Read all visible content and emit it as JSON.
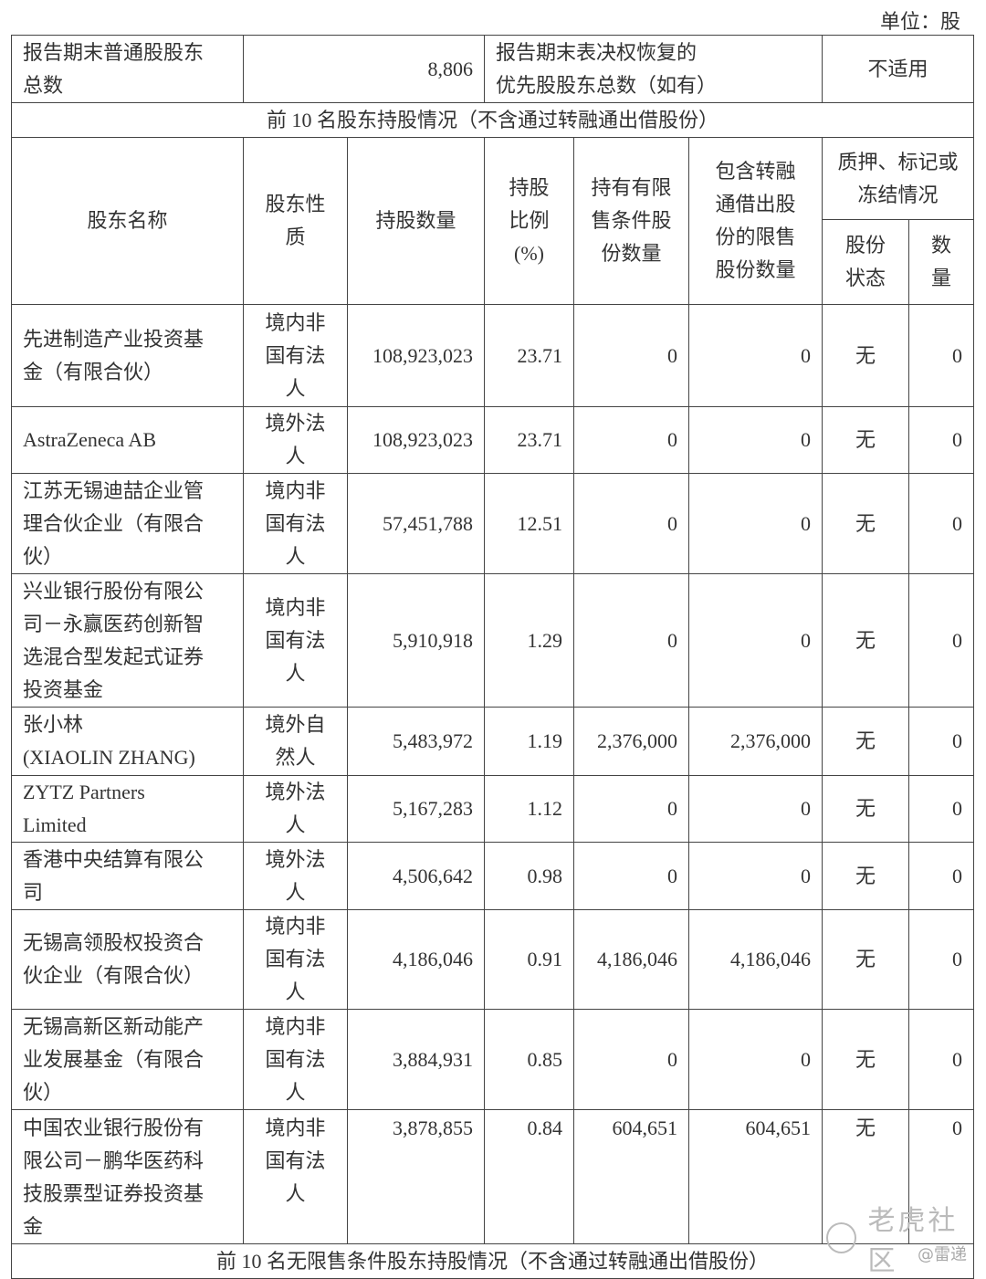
{
  "unit_label": "单位：股",
  "summary": {
    "common_holders_label": "报告期末普通股股东\n总数",
    "common_holders_value": "8,806",
    "preferred_holders_label": "报告期末表决权恢复的\n优先股股东总数（如有）",
    "preferred_holders_value": "不适用"
  },
  "section_title": "前 10 名股东持股情况（不含通过转融通出借股份）",
  "headers": {
    "name": "股东名称",
    "nature": "股东性\n质",
    "shares": "持股数量",
    "ratio": "持股\n比例\n(%)",
    "restricted": "持有有限\n售条件股\n份数量",
    "lent_restricted": "包含转融\n通借出股\n份的限售\n股份数量",
    "pledge": "质押、标记或\n冻结情况",
    "pledge_status": "股份\n状态",
    "pledge_qty": "数\n量"
  },
  "rows": [
    {
      "name": "先进制造产业投资基\n金（有限合伙）",
      "nature": "境内非\n国有法\n人",
      "shares": "108,923,023",
      "ratio": "23.71",
      "restricted": "0",
      "lent": "0",
      "status": "无",
      "qty": "0"
    },
    {
      "name": "AstraZeneca AB",
      "nature": "境外法\n人",
      "shares": "108,923,023",
      "ratio": "23.71",
      "restricted": "0",
      "lent": "0",
      "status": "无",
      "qty": "0"
    },
    {
      "name": "江苏无锡迪喆企业管\n理合伙企业（有限合\n伙）",
      "nature": "境内非\n国有法\n人",
      "shares": "57,451,788",
      "ratio": "12.51",
      "restricted": "0",
      "lent": "0",
      "status": "无",
      "qty": "0"
    },
    {
      "name": "兴业银行股份有限公\n司－永赢医药创新智\n选混合型发起式证券\n投资基金",
      "nature": "境内非\n国有法\n人",
      "shares": "5,910,918",
      "ratio": "1.29",
      "restricted": "0",
      "lent": "0",
      "status": "无",
      "qty": "0"
    },
    {
      "name": "张小林\n(XIAOLIN ZHANG)",
      "nature": "境外自\n然人",
      "shares": "5,483,972",
      "ratio": "1.19",
      "restricted": "2,376,000",
      "lent": "2,376,000",
      "status": "无",
      "qty": "0"
    },
    {
      "name": "ZYTZ Partners\nLimited",
      "nature": "境外法\n人",
      "shares": "5,167,283",
      "ratio": "1.12",
      "restricted": "0",
      "lent": "0",
      "status": "无",
      "qty": "0"
    },
    {
      "name": "香港中央结算有限公\n司",
      "nature": "境外法\n人",
      "shares": "4,506,642",
      "ratio": "0.98",
      "restricted": "0",
      "lent": "0",
      "status": "无",
      "qty": "0"
    },
    {
      "name": "无锡高领股权投资合\n伙企业（有限合伙）",
      "nature": "境内非\n国有法\n人",
      "shares": "4,186,046",
      "ratio": "0.91",
      "restricted": "4,186,046",
      "lent": "4,186,046",
      "status": "无",
      "qty": "0"
    },
    {
      "name": "无锡高新区新动能产\n业发展基金（有限合\n伙）",
      "nature": "境内非\n国有法\n人",
      "shares": "3,884,931",
      "ratio": "0.85",
      "restricted": "0",
      "lent": "0",
      "status": "无",
      "qty": "0"
    },
    {
      "name": "中国农业银行股份有\n限公司－鹏华医药科\n技股票型证券投资基\n金",
      "nature": "境内非\n国有法\n人",
      "shares": "3,878,855",
      "ratio": "0.84",
      "restricted": "604,651",
      "lent": "604,651",
      "status": "无",
      "qty": "0"
    }
  ],
  "footer_section_title": "前 10 名无限售条件股东持股情况（不含通过转融通出借股份）",
  "watermark": {
    "brand": "老虎社区",
    "author": "@雷递"
  }
}
